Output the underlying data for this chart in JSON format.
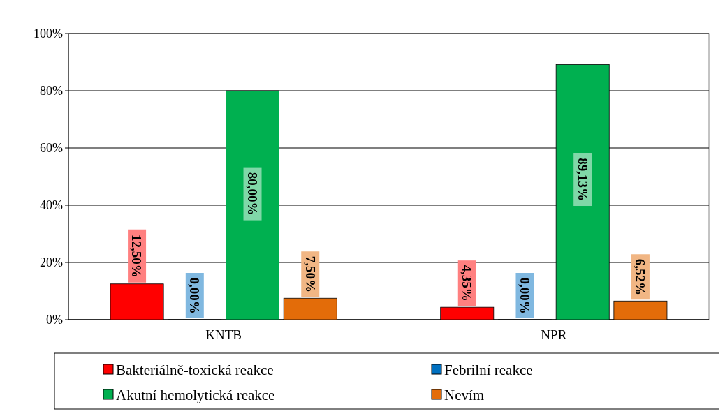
{
  "chart_data": {
    "type": "bar",
    "categories": [
      "KNTB",
      "NPR"
    ],
    "series": [
      {
        "name": "Bakteriálně-toxická reakce",
        "color": "#ff0000",
        "values": [
          12.5,
          4.35
        ],
        "value_labels": [
          "12,50%",
          "4,35%"
        ]
      },
      {
        "name": "Febrilní reakce",
        "color": "#0070c0",
        "values": [
          0,
          0
        ],
        "value_labels": [
          "0,00%",
          "0,00%"
        ]
      },
      {
        "name": "Akutní hemolytická reakce",
        "color": "#00b050",
        "values": [
          80,
          89.13
        ],
        "value_labels": [
          "80,00%",
          "89,13%"
        ]
      },
      {
        "name": "Nevím",
        "color": "#e36c09",
        "values": [
          7.5,
          6.52
        ],
        "value_labels": [
          "7,50%",
          "6,52%"
        ]
      }
    ],
    "ylim": [
      0,
      100
    ],
    "yticks": [
      {
        "value": 0,
        "label": "0%"
      },
      {
        "value": 20,
        "label": "20%"
      },
      {
        "value": 40,
        "label": "40%"
      },
      {
        "value": 60,
        "label": "60%"
      },
      {
        "value": 80,
        "label": "80%"
      },
      {
        "value": 100,
        "label": "100%"
      }
    ],
    "grid": "y",
    "legend": "bottom"
  }
}
